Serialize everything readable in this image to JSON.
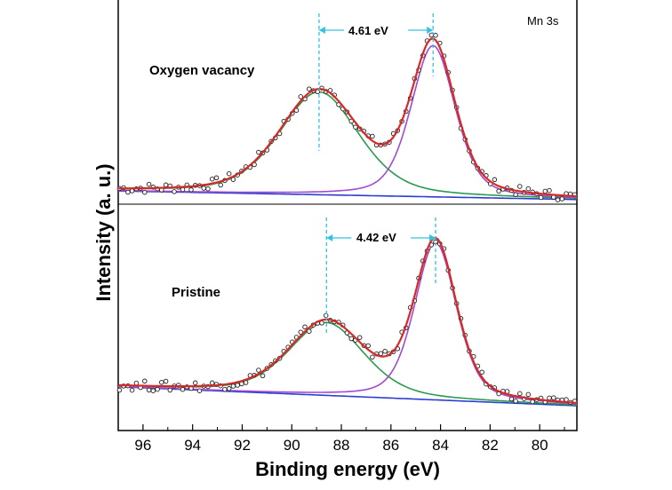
{
  "chart_data": {
    "type": "line",
    "title": "",
    "element_label": "Mn 3s",
    "xlabel": "Binding energy (eV)",
    "ylabel": "Intensity (a. u.)",
    "xlim": [
      97,
      78.5
    ],
    "x_reversed": true,
    "x_ticks": [
      96,
      94,
      92,
      90,
      88,
      86,
      84,
      82,
      80
    ],
    "y_ticks": [],
    "panels": [
      {
        "name": "Oxygen vacancy",
        "label": "Oxygen vacancy",
        "peak1_eV": 88.9,
        "peak2_eV": 84.3,
        "splitting": "4.61 eV",
        "intensity_range": [
          0,
          1.2
        ],
        "background": {
          "at_97": 0.08,
          "at_78_5": 0.02
        },
        "peak1": {
          "center": 88.9,
          "height": 0.72,
          "fwhm": 3.8
        },
        "peak2": {
          "center": 84.3,
          "height": 1.06,
          "fwhm": 2.1
        },
        "series": [
          {
            "name": "experimental",
            "style": "open circles"
          },
          {
            "name": "envelope fit",
            "color": "#d42a2a"
          },
          {
            "name": "peak 1 (~88.9 eV)",
            "color": "#2a9a4e"
          },
          {
            "name": "peak 2 (~84.3 eV)",
            "color": "#a24ad0"
          },
          {
            "name": "background",
            "color": "#2a3ed0"
          }
        ]
      },
      {
        "name": "Pristine",
        "label": "Pristine",
        "peak1_eV": 88.6,
        "peak2_eV": 84.2,
        "splitting": "4.42 eV",
        "intensity_range": [
          0,
          1.2
        ],
        "background": {
          "at_97": 0.16,
          "at_78_5": 0.03
        },
        "peak1": {
          "center": 88.6,
          "height": 0.5,
          "fwhm": 3.6
        },
        "peak2": {
          "center": 84.2,
          "height": 1.08,
          "fwhm": 2.0
        },
        "series": [
          {
            "name": "experimental",
            "style": "open circles"
          },
          {
            "name": "envelope fit",
            "color": "#d42a2a"
          },
          {
            "name": "peak 1 (~88.6 eV)",
            "color": "#2a9a4e"
          },
          {
            "name": "peak 2 (~84.2 eV)",
            "color": "#a24ad0"
          },
          {
            "name": "background",
            "color": "#2a3ed0"
          }
        ]
      }
    ],
    "colors": {
      "envelope": "#d42a2a",
      "peak1": "#2a9a4e",
      "peak2": "#a24ad0",
      "background": "#2a3ed0",
      "guide": "#33c2df",
      "points": "#222222"
    }
  }
}
